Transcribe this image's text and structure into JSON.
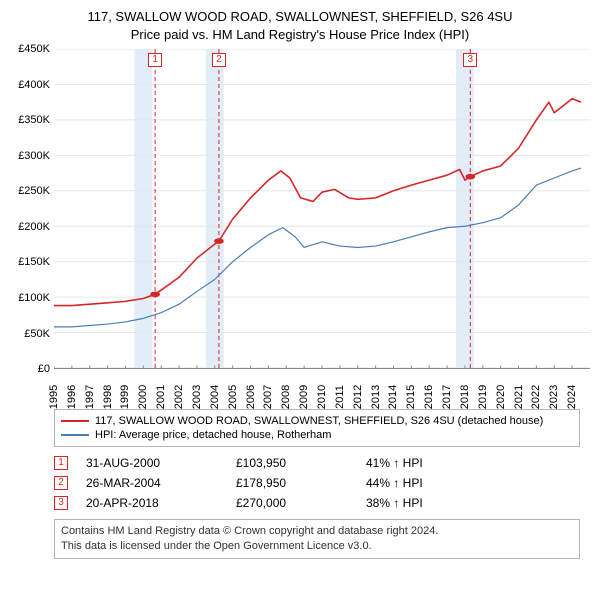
{
  "title_line1": "117, SWALLOW WOOD ROAD, SWALLOWNEST, SHEFFIELD, S26 4SU",
  "title_line2": "Price paid vs. HM Land Registry's House Price Index (HPI)",
  "chart": {
    "type": "line",
    "background_color": "#ffffff",
    "grid_color": "#e6e6e6",
    "band_color": "#e2edf8",
    "ylim": [
      0,
      450000
    ],
    "ytick_step": 50000,
    "yticks": [
      "£0",
      "£50K",
      "£100K",
      "£150K",
      "£200K",
      "£250K",
      "£300K",
      "£350K",
      "£400K",
      "£450K"
    ],
    "xlim": [
      1995,
      2025
    ],
    "xticks": [
      1995,
      1996,
      1997,
      1998,
      1999,
      2000,
      2001,
      2002,
      2003,
      2004,
      2005,
      2006,
      2007,
      2008,
      2009,
      2010,
      2011,
      2012,
      2013,
      2014,
      2015,
      2016,
      2017,
      2018,
      2019,
      2020,
      2021,
      2022,
      2023,
      2024
    ],
    "marker_vlines": [
      {
        "x": 2000.66,
        "label": "1",
        "color": "#d62728"
      },
      {
        "x": 2004.23,
        "label": "2",
        "color": "#d62728"
      },
      {
        "x": 2018.3,
        "label": "3",
        "color": "#d62728"
      }
    ],
    "bands": [
      {
        "from": 1999.5,
        "to": 2000.5
      },
      {
        "from": 2003.5,
        "to": 2004.5
      },
      {
        "from": 2017.5,
        "to": 2018.5
      }
    ],
    "series": [
      {
        "name": "property",
        "color": "#d62728",
        "width": 1.6,
        "legend": "117, SWALLOW WOOD ROAD, SWALLOWNEST, SHEFFIELD, S26 4SU (detached house)",
        "points": [
          [
            1995.0,
            88000
          ],
          [
            1996.0,
            88000
          ],
          [
            1997.0,
            90000
          ],
          [
            1998.0,
            92000
          ],
          [
            1999.0,
            94000
          ],
          [
            2000.0,
            98000
          ],
          [
            2000.66,
            103950
          ],
          [
            2001.0,
            110000
          ],
          [
            2002.0,
            128000
          ],
          [
            2003.0,
            155000
          ],
          [
            2004.0,
            175000
          ],
          [
            2004.23,
            178950
          ],
          [
            2005.0,
            210000
          ],
          [
            2006.0,
            240000
          ],
          [
            2007.0,
            265000
          ],
          [
            2007.7,
            278000
          ],
          [
            2008.2,
            268000
          ],
          [
            2008.8,
            240000
          ],
          [
            2009.5,
            235000
          ],
          [
            2010.0,
            248000
          ],
          [
            2010.7,
            252000
          ],
          [
            2011.5,
            240000
          ],
          [
            2012.0,
            238000
          ],
          [
            2013.0,
            240000
          ],
          [
            2014.0,
            250000
          ],
          [
            2015.0,
            258000
          ],
          [
            2016.0,
            265000
          ],
          [
            2017.0,
            272000
          ],
          [
            2017.7,
            280000
          ],
          [
            2018.0,
            265000
          ],
          [
            2018.3,
            270000
          ],
          [
            2019.0,
            278000
          ],
          [
            2020.0,
            285000
          ],
          [
            2021.0,
            310000
          ],
          [
            2022.0,
            350000
          ],
          [
            2022.7,
            375000
          ],
          [
            2023.0,
            360000
          ],
          [
            2023.5,
            370000
          ],
          [
            2024.0,
            380000
          ],
          [
            2024.5,
            375000
          ]
        ],
        "markers": [
          {
            "x": 2000.66,
            "y": 103950
          },
          {
            "x": 2004.23,
            "y": 178950
          },
          {
            "x": 2018.3,
            "y": 270000
          }
        ]
      },
      {
        "name": "hpi",
        "color": "#4a7fb5",
        "width": 1.2,
        "legend": "HPI: Average price, detached house, Rotherham",
        "points": [
          [
            1995.0,
            58000
          ],
          [
            1996.0,
            58000
          ],
          [
            1997.0,
            60000
          ],
          [
            1998.0,
            62000
          ],
          [
            1999.0,
            65000
          ],
          [
            2000.0,
            70000
          ],
          [
            2001.0,
            78000
          ],
          [
            2002.0,
            90000
          ],
          [
            2003.0,
            108000
          ],
          [
            2004.0,
            125000
          ],
          [
            2005.0,
            150000
          ],
          [
            2006.0,
            170000
          ],
          [
            2007.0,
            188000
          ],
          [
            2007.8,
            198000
          ],
          [
            2008.5,
            185000
          ],
          [
            2009.0,
            170000
          ],
          [
            2010.0,
            178000
          ],
          [
            2011.0,
            172000
          ],
          [
            2012.0,
            170000
          ],
          [
            2013.0,
            172000
          ],
          [
            2014.0,
            178000
          ],
          [
            2015.0,
            185000
          ],
          [
            2016.0,
            192000
          ],
          [
            2017.0,
            198000
          ],
          [
            2018.0,
            200000
          ],
          [
            2019.0,
            205000
          ],
          [
            2020.0,
            212000
          ],
          [
            2021.0,
            230000
          ],
          [
            2022.0,
            258000
          ],
          [
            2023.0,
            268000
          ],
          [
            2024.0,
            278000
          ],
          [
            2024.5,
            282000
          ]
        ]
      }
    ]
  },
  "sales": [
    {
      "marker": "1",
      "color": "#d62728",
      "date": "31-AUG-2000",
      "price": "£103,950",
      "diff": "41% ↑ HPI"
    },
    {
      "marker": "2",
      "color": "#d62728",
      "date": "26-MAR-2004",
      "price": "£178,950",
      "diff": "44% ↑ HPI"
    },
    {
      "marker": "3",
      "color": "#d62728",
      "date": "20-APR-2018",
      "price": "£270,000",
      "diff": "38% ↑ HPI"
    }
  ],
  "footer_line1": "Contains HM Land Registry data © Crown copyright and database right 2024.",
  "footer_line2": "This data is licensed under the Open Government Licence v3.0."
}
